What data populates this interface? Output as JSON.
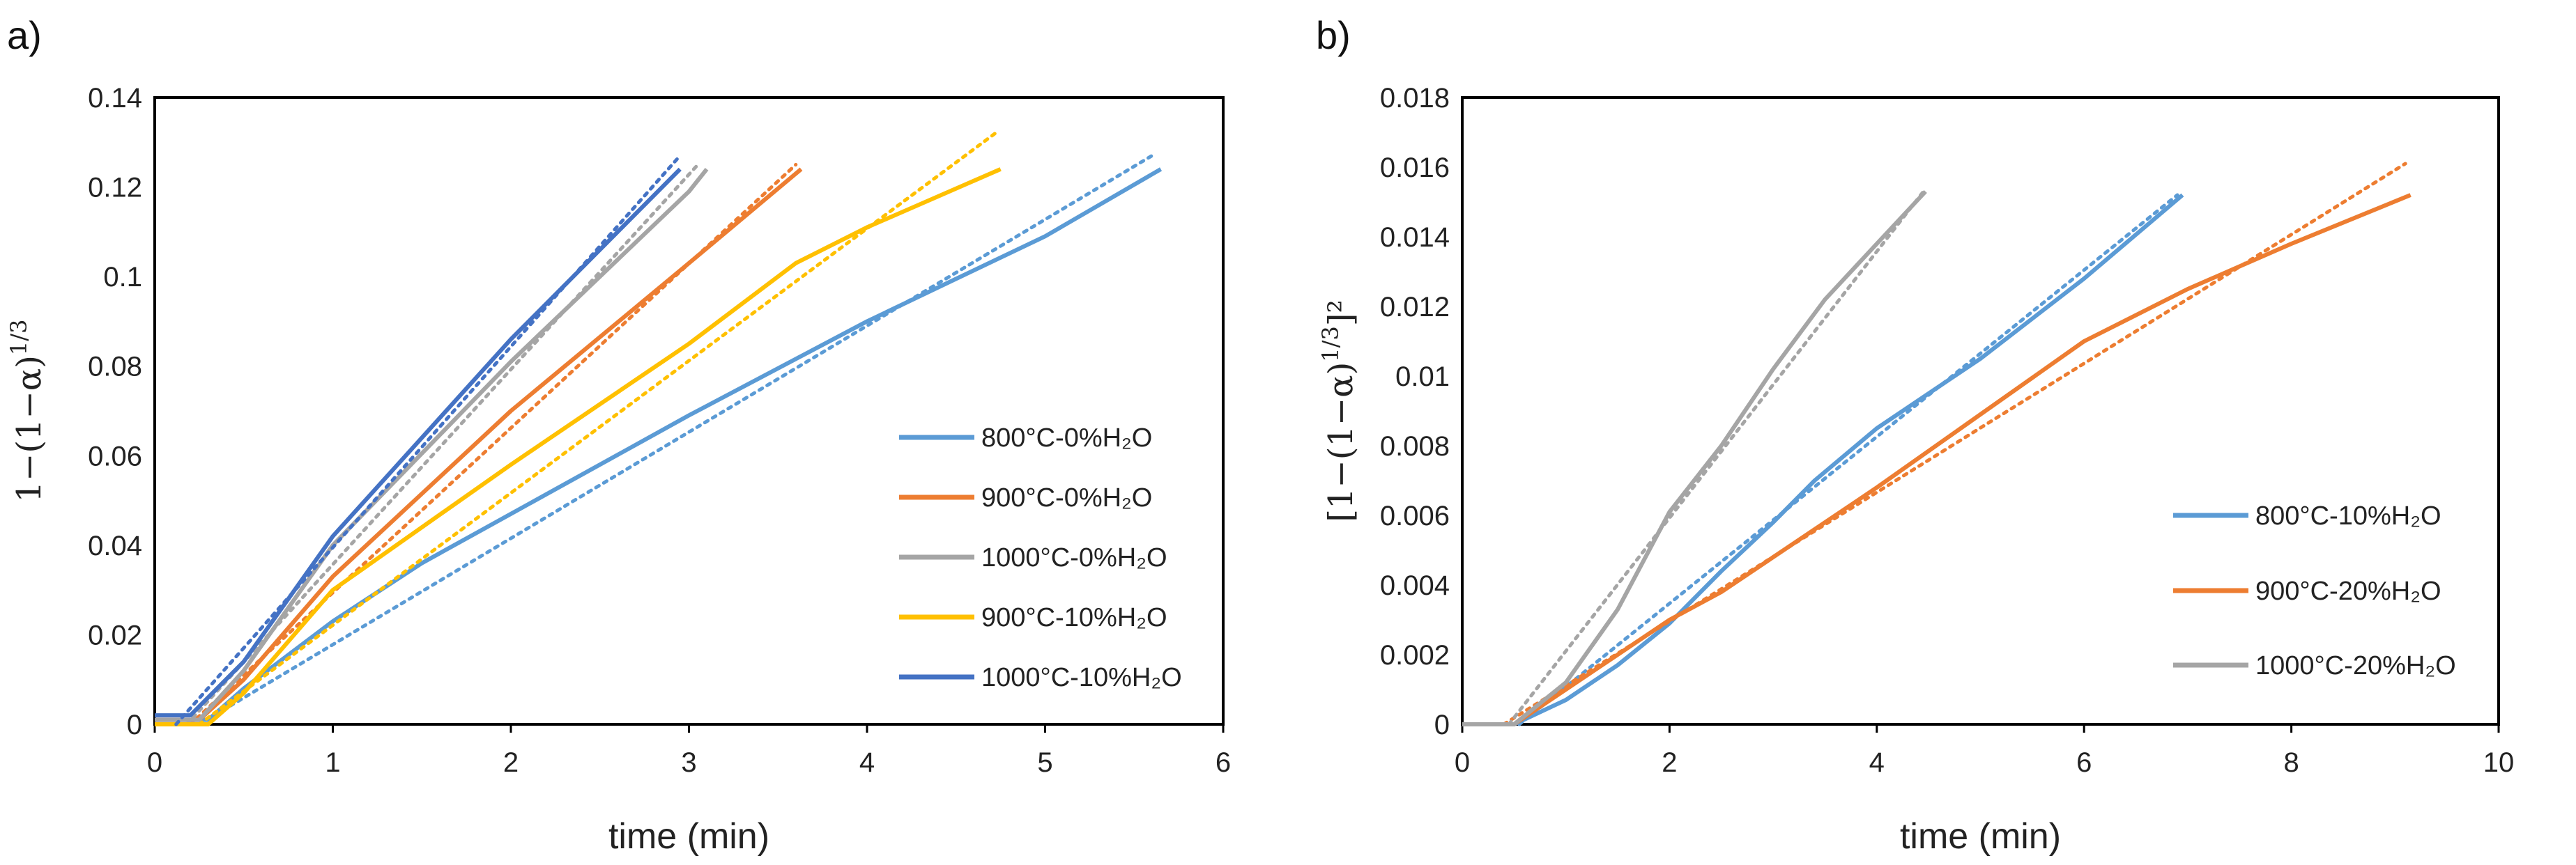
{
  "chart_data": [
    {
      "panel": "a)",
      "type": "line",
      "xlabel": "time (min)",
      "ylabel_base": "1−(1−α)",
      "ylabel_sup": "1/3",
      "ylabel_tail": "",
      "xlim": [
        0,
        6
      ],
      "ylim": [
        0,
        0.14
      ],
      "xticks": [
        "0",
        "1",
        "2",
        "3",
        "4",
        "5",
        "6"
      ],
      "yticks": [
        "0",
        "0.02",
        "0.04",
        "0.06",
        "0.08",
        "0.1",
        "0.12",
        "0.14"
      ],
      "grid": false,
      "legend_position": "right",
      "series": [
        {
          "name": "800°C-0%H₂O",
          "color": "#5B9BD5",
          "points": [
            [
              0,
              0.001
            ],
            [
              0.3,
              0.001
            ],
            [
              0.5,
              0.008
            ],
            [
              1,
              0.023
            ],
            [
              1.5,
              0.036
            ],
            [
              2,
              0.047
            ],
            [
              3,
              0.069
            ],
            [
              4,
              0.09
            ],
            [
              5,
              0.109
            ],
            [
              5.65,
              0.124
            ]
          ],
          "fit": [
            [
              0.25,
              0
            ],
            [
              5.6,
              0.127
            ]
          ]
        },
        {
          "name": "900°C-0%H₂O",
          "color": "#ED7D31",
          "points": [
            [
              0,
              0.001
            ],
            [
              0.25,
              0.001
            ],
            [
              0.5,
              0.01
            ],
            [
              1,
              0.033
            ],
            [
              2,
              0.07
            ],
            [
              3,
              0.103
            ],
            [
              3.63,
              0.124
            ]
          ],
          "fit": [
            [
              0.2,
              0
            ],
            [
              3.6,
              0.125
            ]
          ]
        },
        {
          "name": "1000°C-0%H₂O",
          "color": "#A5A5A5",
          "points": [
            [
              0,
              0.001
            ],
            [
              0.25,
              0.001
            ],
            [
              0.5,
              0.012
            ],
            [
              1,
              0.04
            ],
            [
              2,
              0.081
            ],
            [
              3,
              0.119
            ],
            [
              3.1,
              0.124
            ]
          ],
          "fit": [
            [
              0.18,
              0
            ],
            [
              3.05,
              0.125
            ]
          ]
        },
        {
          "name": "900°C-10%H₂O",
          "color": "#FFC000",
          "points": [
            [
              0,
              0
            ],
            [
              0.3,
              0
            ],
            [
              0.5,
              0.007
            ],
            [
              1,
              0.03
            ],
            [
              2,
              0.058
            ],
            [
              3,
              0.085
            ],
            [
              3.6,
              0.103
            ],
            [
              4,
              0.111
            ],
            [
              4.75,
              0.124
            ]
          ],
          "fit": [
            [
              0.25,
              0
            ],
            [
              4.72,
              0.132
            ]
          ]
        },
        {
          "name": "1000°C-10%H₂O",
          "color": "#4472C4",
          "points": [
            [
              0,
              0.002
            ],
            [
              0.2,
              0.002
            ],
            [
              0.5,
              0.014
            ],
            [
              1,
              0.042
            ],
            [
              2,
              0.086
            ],
            [
              2.95,
              0.124
            ]
          ],
          "fit": [
            [
              0.12,
              0
            ],
            [
              2.95,
              0.127
            ]
          ]
        }
      ]
    },
    {
      "panel": "b)",
      "type": "line",
      "xlabel": "time (min)",
      "ylabel_base": "[1−(1−α)",
      "ylabel_sup": "1/3",
      "ylabel_tail": "]²",
      "xlim": [
        0,
        10
      ],
      "ylim": [
        0,
        0.018
      ],
      "xticks": [
        "0",
        "2",
        "4",
        "6",
        "8",
        "10"
      ],
      "yticks": [
        "0",
        "0.002",
        "0.004",
        "0.006",
        "0.008",
        "0.01",
        "0.012",
        "0.014",
        "0.016",
        "0.018"
      ],
      "grid": false,
      "legend_position": "right",
      "series": [
        {
          "name": "800°C-10%H₂O",
          "color": "#5B9BD5",
          "points": [
            [
              0,
              0
            ],
            [
              0.5,
              0
            ],
            [
              1,
              0.0007
            ],
            [
              1.5,
              0.0017
            ],
            [
              2,
              0.0029
            ],
            [
              2.5,
              0.0044
            ],
            [
              3,
              0.0058
            ],
            [
              3.4,
              0.007
            ],
            [
              4,
              0.0085
            ],
            [
              5,
              0.0105
            ],
            [
              6,
              0.0128
            ],
            [
              6.95,
              0.0152
            ]
          ],
          "fit": [
            [
              0.55,
              0
            ],
            [
              6.9,
              0.0152
            ]
          ]
        },
        {
          "name": "900°C-20%H₂O",
          "color": "#ED7D31",
          "points": [
            [
              0,
              0
            ],
            [
              0.5,
              0
            ],
            [
              1,
              0.001
            ],
            [
              1.5,
              0.002
            ],
            [
              2,
              0.003
            ],
            [
              2.5,
              0.0038
            ],
            [
              3,
              0.0048
            ],
            [
              4,
              0.0068
            ],
            [
              5,
              0.0089
            ],
            [
              6,
              0.011
            ],
            [
              7,
              0.0125
            ],
            [
              8,
              0.0138
            ],
            [
              9.15,
              0.0152
            ]
          ],
          "fit": [
            [
              0.4,
              0
            ],
            [
              9.1,
              0.0161
            ]
          ]
        },
        {
          "name": "1000°C-20%H₂O",
          "color": "#A5A5A5",
          "points": [
            [
              0,
              0
            ],
            [
              0.5,
              0
            ],
            [
              1,
              0.0012
            ],
            [
              1.5,
              0.0033
            ],
            [
              2,
              0.0061
            ],
            [
              2.5,
              0.008
            ],
            [
              3,
              0.0102
            ],
            [
              3.5,
              0.0122
            ],
            [
              4,
              0.0138
            ],
            [
              4.47,
              0.0153
            ]
          ],
          "fit": [
            [
              0.45,
              0
            ],
            [
              4.45,
              0.0153
            ]
          ]
        }
      ]
    }
  ]
}
